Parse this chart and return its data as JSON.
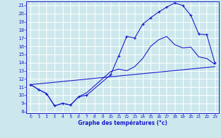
{
  "xlabel": "Graphe des températures (°c)",
  "xlim": [
    -0.5,
    23.5
  ],
  "ylim": [
    7.8,
    21.5
  ],
  "yticks": [
    8,
    9,
    10,
    11,
    12,
    13,
    14,
    15,
    16,
    17,
    18,
    19,
    20,
    21
  ],
  "xticks": [
    0,
    1,
    2,
    3,
    4,
    5,
    6,
    7,
    8,
    9,
    10,
    11,
    12,
    13,
    14,
    15,
    16,
    17,
    18,
    19,
    20,
    21,
    22,
    23
  ],
  "background_color": "#cde8ec",
  "line_color": "#1a1acc",
  "grid_color": "#ffffff",
  "line1_x": [
    0,
    1,
    2,
    3,
    4,
    5,
    6,
    7,
    10,
    11,
    12,
    13,
    14,
    15,
    16,
    17,
    18,
    19,
    20,
    21,
    22,
    23
  ],
  "line1_y": [
    11.3,
    10.7,
    10.2,
    8.7,
    9.0,
    8.8,
    9.8,
    10.0,
    12.5,
    14.8,
    17.2,
    17.0,
    18.7,
    19.5,
    20.2,
    20.8,
    21.3,
    21.0,
    19.8,
    17.5,
    17.4,
    14.0
  ],
  "line2_x": [
    0,
    1,
    2,
    3,
    4,
    5,
    6,
    7,
    10,
    11,
    12,
    13,
    14,
    15,
    16,
    17,
    18,
    19,
    20,
    21,
    22,
    23
  ],
  "line2_y": [
    11.3,
    10.7,
    10.2,
    8.7,
    9.0,
    8.8,
    9.8,
    10.3,
    12.9,
    13.2,
    13.0,
    13.5,
    14.5,
    16.0,
    16.8,
    17.2,
    16.2,
    15.8,
    15.9,
    14.7,
    14.5,
    13.8
  ],
  "line3_x": [
    0,
    23
  ],
  "line3_y": [
    11.3,
    13.5
  ]
}
